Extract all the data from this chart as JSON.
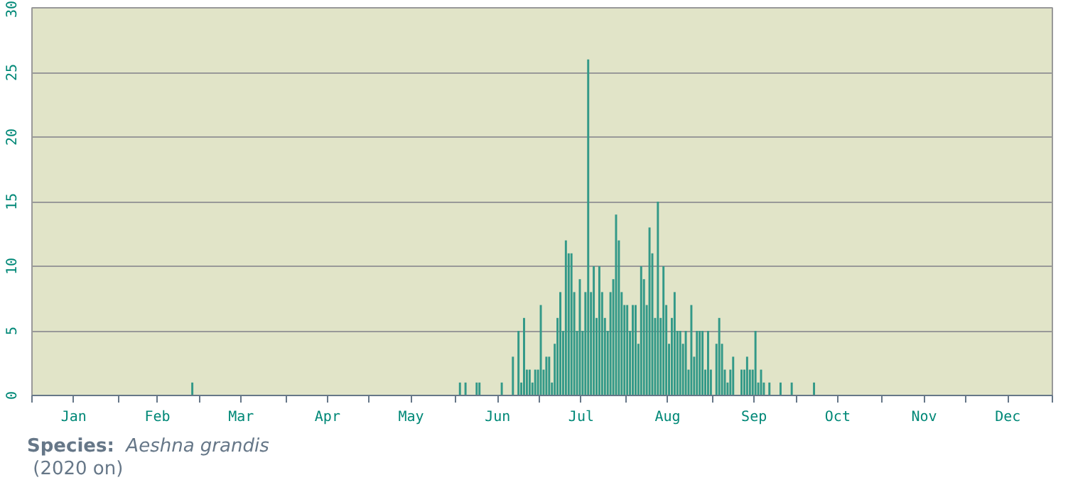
{
  "chart_data": {
    "type": "bar",
    "color": "#339988",
    "x": [
      "2020-02-27",
      "2020-06-02",
      "2020-06-04",
      "2020-06-08",
      "2020-06-09",
      "2020-06-17",
      "2020-06-21",
      "2020-06-23",
      "2020-06-24",
      "2020-06-25",
      "2020-06-26",
      "2020-06-27",
      "2020-06-28",
      "2020-06-29",
      "2020-06-30",
      "2020-07-01",
      "2020-07-02",
      "2020-07-03",
      "2020-07-04",
      "2020-07-05",
      "2020-07-06",
      "2020-07-07",
      "2020-07-08",
      "2020-07-09",
      "2020-07-10",
      "2020-07-11",
      "2020-07-12",
      "2020-07-13",
      "2020-07-14",
      "2020-07-15",
      "2020-07-16",
      "2020-07-17",
      "2020-07-18",
      "2020-07-19",
      "2020-07-20",
      "2020-07-21",
      "2020-07-22",
      "2020-07-23",
      "2020-07-24",
      "2020-07-25",
      "2020-07-26",
      "2020-07-27",
      "2020-07-28",
      "2020-07-29",
      "2020-07-30",
      "2020-07-31",
      "2020-08-01",
      "2020-08-02",
      "2020-08-03",
      "2020-08-04",
      "2020-08-05",
      "2020-08-06",
      "2020-08-07",
      "2020-08-08",
      "2020-08-09",
      "2020-08-10",
      "2020-08-11",
      "2020-08-12",
      "2020-08-13",
      "2020-08-14",
      "2020-08-15",
      "2020-08-16",
      "2020-08-17",
      "2020-08-18",
      "2020-08-19",
      "2020-08-20",
      "2020-08-21",
      "2020-08-22",
      "2020-08-23",
      "2020-08-24",
      "2020-08-25",
      "2020-08-26",
      "2020-08-27",
      "2020-08-28",
      "2020-08-29",
      "2020-08-30",
      "2020-08-31",
      "2020-09-02",
      "2020-09-03",
      "2020-09-04",
      "2020-09-05",
      "2020-09-06",
      "2020-09-07",
      "2020-09-08",
      "2020-09-11",
      "2020-09-12",
      "2020-09-13",
      "2020-09-14",
      "2020-09-15",
      "2020-09-16",
      "2020-09-17",
      "2020-09-18",
      "2020-09-19",
      "2020-09-21",
      "2020-09-25",
      "2020-09-29",
      "2020-10-07"
    ],
    "values": [
      1,
      1,
      1,
      1,
      1,
      1,
      3,
      5,
      1,
      6,
      2,
      2,
      1,
      2,
      2,
      7,
      2,
      3,
      3,
      1,
      4,
      6,
      8,
      5,
      12,
      11,
      11,
      8,
      5,
      9,
      5,
      8,
      26,
      8,
      10,
      6,
      10,
      8,
      6,
      5,
      8,
      9,
      14,
      12,
      8,
      7,
      7,
      5,
      7,
      7,
      4,
      10,
      9,
      7,
      13,
      11,
      6,
      15,
      6,
      10,
      7,
      4,
      6,
      8,
      5,
      5,
      4,
      5,
      2,
      7,
      3,
      5,
      5,
      5,
      2,
      5,
      2,
      4,
      6,
      4,
      2,
      1,
      2,
      3,
      2,
      2,
      3,
      2,
      2,
      5,
      1,
      2,
      1,
      1,
      1,
      1,
      1
    ],
    "xlim": [
      "2020-01-01",
      "2021-01-01"
    ],
    "xticks": [
      {
        "value": "2020-01-01",
        "label": null
      },
      {
        "value": "2020-01-16",
        "label": "Jan"
      },
      {
        "value": "2020-02-01",
        "label": null
      },
      {
        "value": "2020-02-15",
        "label": "Feb"
      },
      {
        "value": "2020-03-01",
        "label": null
      },
      {
        "value": "2020-03-16",
        "label": "Mar"
      },
      {
        "value": "2020-04-01",
        "label": null
      },
      {
        "value": "2020-04-16",
        "label": "Apr"
      },
      {
        "value": "2020-05-01",
        "label": null
      },
      {
        "value": "2020-05-16",
        "label": "May"
      },
      {
        "value": "2020-06-01",
        "label": null
      },
      {
        "value": "2020-06-16",
        "label": "Jun"
      },
      {
        "value": "2020-07-01",
        "label": null
      },
      {
        "value": "2020-07-16",
        "label": "Jul"
      },
      {
        "value": "2020-08-01",
        "label": null
      },
      {
        "value": "2020-08-16",
        "label": "Aug"
      },
      {
        "value": "2020-09-01",
        "label": null
      },
      {
        "value": "2020-09-16",
        "label": "Sep"
      },
      {
        "value": "2020-10-01",
        "label": null
      },
      {
        "value": "2020-10-16",
        "label": "Oct"
      },
      {
        "value": "2020-11-01",
        "label": null
      },
      {
        "value": "2020-11-16",
        "label": "Nov"
      },
      {
        "value": "2020-12-01",
        "label": null
      },
      {
        "value": "2020-12-16",
        "label": "Dec"
      },
      {
        "value": "2021-01-01",
        "label": null
      }
    ],
    "ylim": [
      0,
      30
    ],
    "yticks": [
      0,
      5,
      10,
      15,
      20,
      25,
      30
    ],
    "grid": "y",
    "annotations": [
      "Species:",
      "Aeshna grandis",
      "(2020 on)"
    ]
  }
}
